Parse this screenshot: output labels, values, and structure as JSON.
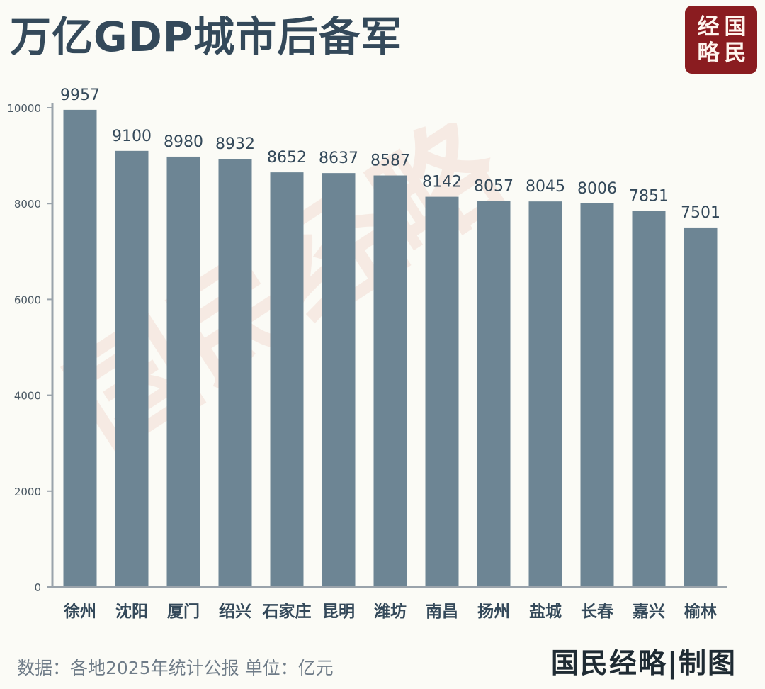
{
  "title": "万亿GDP城市后备军",
  "seal": {
    "chars": [
      "经",
      "国",
      "略",
      "民"
    ]
  },
  "watermark": "国民经略",
  "source": "数据：各地2025年统计公报 单位：亿元",
  "credit": "国民经略|制图",
  "colors": {
    "bar": "#6d8594",
    "title": "#34495a",
    "axis": "#9aa3ab",
    "seal": "#8a1c20",
    "label": "#34495a",
    "watermark": "#f3dcd4"
  },
  "chart_data": {
    "type": "bar",
    "title": "万亿GDP城市后备军",
    "categories": [
      "徐州",
      "沈阳",
      "厦门",
      "绍兴",
      "石家庄",
      "昆明",
      "潍坊",
      "南昌",
      "扬州",
      "盐城",
      "长春",
      "嘉兴",
      "榆林"
    ],
    "values": [
      9957,
      9100,
      8980,
      8932,
      8652,
      8637,
      8587,
      8142,
      8057,
      8045,
      8006,
      7851,
      7501
    ],
    "ylim": [
      0,
      10000
    ],
    "yticks": [
      0,
      2000,
      4000,
      6000,
      8000,
      10000
    ],
    "grid": false,
    "legend": "none",
    "xlabel": "",
    "ylabel": ""
  }
}
